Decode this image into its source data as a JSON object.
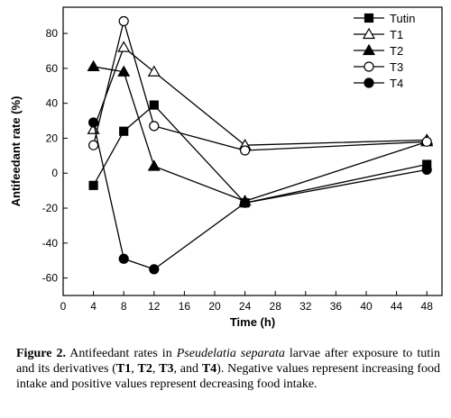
{
  "chart_data": {
    "type": "line",
    "xlabel": "Time (h)",
    "ylabel": "Antifeedant rate (%)",
    "xlim": [
      0,
      50
    ],
    "ylim": [
      -70,
      95
    ],
    "xticks": [
      0,
      4,
      8,
      12,
      16,
      20,
      24,
      28,
      32,
      36,
      40,
      44,
      48
    ],
    "yticks": [
      -60,
      -40,
      -20,
      0,
      20,
      40,
      60,
      80
    ],
    "legend_position": "top-right",
    "x": [
      4,
      8,
      12,
      24,
      48
    ],
    "series": [
      {
        "name": "Tutin",
        "marker": "square-filled",
        "values": [
          -7,
          24,
          39,
          -17,
          5
        ]
      },
      {
        "name": "T1",
        "marker": "triangle-open",
        "values": [
          25,
          72,
          58,
          16,
          19
        ]
      },
      {
        "name": "T2",
        "marker": "triangle-filled",
        "values": [
          61,
          58,
          4,
          -16,
          18
        ]
      },
      {
        "name": "T3",
        "marker": "circle-open",
        "values": [
          16,
          87,
          27,
          13,
          18
        ]
      },
      {
        "name": "T4",
        "marker": "circle-filled",
        "values": [
          29,
          -49,
          -55,
          -17,
          2
        ]
      }
    ]
  },
  "caption": {
    "label": "Figure 2.",
    "text1": " Antifeedant rates in ",
    "species": "Pseudelatia separata",
    "text2": " larvae after exposure to tutin and its derivatives (",
    "t1": "T1",
    "sep1": ", ",
    "t2": "T2",
    "sep2": ", ",
    "t3": "T3",
    "sep3": ", and ",
    "t4": "T4",
    "text3": "). Negative values represent increasing food intake and positive values represent decreasing food intake."
  }
}
